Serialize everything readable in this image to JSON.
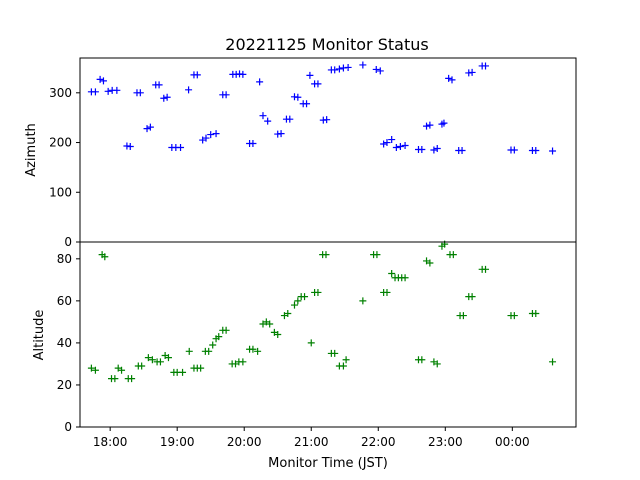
{
  "chart_data": {
    "type": "scatter",
    "title": "20221125 Monitor Status",
    "xlabel": "Monitor Time (JST)",
    "x_ticks": [
      "18:00",
      "19:00",
      "20:00",
      "21:00",
      "22:00",
      "23:00",
      "00:00"
    ],
    "x_tick_hours": [
      18,
      19,
      20,
      21,
      22,
      23,
      24
    ],
    "xlim_hours": [
      17.55,
      24.95
    ],
    "marker": "+",
    "panels": [
      {
        "name": "azimuth",
        "ylabel": "Azimuth",
        "color": "#0000ff",
        "ylim": [
          0,
          370
        ],
        "y_ticks": [
          0,
          100,
          200,
          300
        ],
        "points": [
          [
            17.72,
            302
          ],
          [
            17.78,
            302
          ],
          [
            17.85,
            327
          ],
          [
            17.9,
            324
          ],
          [
            17.97,
            303
          ],
          [
            18.03,
            305
          ],
          [
            18.1,
            305
          ],
          [
            18.25,
            193
          ],
          [
            18.3,
            192
          ],
          [
            18.4,
            300
          ],
          [
            18.45,
            300
          ],
          [
            18.55,
            228
          ],
          [
            18.6,
            231
          ],
          [
            18.68,
            316
          ],
          [
            18.73,
            316
          ],
          [
            18.8,
            289
          ],
          [
            18.85,
            291
          ],
          [
            18.92,
            190
          ],
          [
            18.98,
            190
          ],
          [
            19.05,
            190
          ],
          [
            19.17,
            306
          ],
          [
            19.25,
            336
          ],
          [
            19.3,
            336
          ],
          [
            19.38,
            205
          ],
          [
            19.43,
            209
          ],
          [
            19.5,
            216
          ],
          [
            19.58,
            218
          ],
          [
            19.68,
            296
          ],
          [
            19.73,
            296
          ],
          [
            19.83,
            337
          ],
          [
            19.88,
            337
          ],
          [
            19.93,
            338
          ],
          [
            19.98,
            337
          ],
          [
            20.08,
            198
          ],
          [
            20.13,
            198
          ],
          [
            20.23,
            322
          ],
          [
            20.28,
            254
          ],
          [
            20.35,
            243
          ],
          [
            20.5,
            217
          ],
          [
            20.55,
            218
          ],
          [
            20.63,
            247
          ],
          [
            20.68,
            247
          ],
          [
            20.75,
            292
          ],
          [
            20.8,
            291
          ],
          [
            20.88,
            278
          ],
          [
            20.93,
            278
          ],
          [
            20.98,
            335
          ],
          [
            21.05,
            318
          ],
          [
            21.1,
            318
          ],
          [
            21.18,
            245
          ],
          [
            21.23,
            246
          ],
          [
            21.3,
            346
          ],
          [
            21.35,
            346
          ],
          [
            21.42,
            348
          ],
          [
            21.48,
            350
          ],
          [
            21.55,
            351
          ],
          [
            21.77,
            356
          ],
          [
            21.97,
            347
          ],
          [
            22.03,
            344
          ],
          [
            22.08,
            197
          ],
          [
            22.13,
            200
          ],
          [
            22.2,
            206
          ],
          [
            22.27,
            190
          ],
          [
            22.33,
            192
          ],
          [
            22.4,
            194
          ],
          [
            22.6,
            186
          ],
          [
            22.65,
            186
          ],
          [
            22.72,
            233
          ],
          [
            22.77,
            235
          ],
          [
            22.83,
            185
          ],
          [
            22.88,
            188
          ],
          [
            22.95,
            237
          ],
          [
            22.98,
            239
          ],
          [
            23.05,
            329
          ],
          [
            23.1,
            326
          ],
          [
            23.2,
            184
          ],
          [
            23.25,
            184
          ],
          [
            23.35,
            340
          ],
          [
            23.4,
            341
          ],
          [
            23.55,
            354
          ],
          [
            23.6,
            354
          ],
          [
            23.98,
            185
          ],
          [
            24.03,
            185
          ],
          [
            24.3,
            184
          ],
          [
            24.35,
            184
          ],
          [
            24.6,
            183
          ]
        ]
      },
      {
        "name": "altitude",
        "ylabel": "Altitude",
        "color": "#008000",
        "ylim": [
          0,
          88
        ],
        "y_ticks": [
          0,
          20,
          40,
          60,
          80
        ],
        "points": [
          [
            17.72,
            28
          ],
          [
            17.78,
            27
          ],
          [
            17.88,
            82
          ],
          [
            17.92,
            81
          ],
          [
            18.02,
            23
          ],
          [
            18.07,
            23
          ],
          [
            18.12,
            28
          ],
          [
            18.17,
            27
          ],
          [
            18.27,
            23
          ],
          [
            18.32,
            23
          ],
          [
            18.42,
            29
          ],
          [
            18.47,
            29
          ],
          [
            18.57,
            33
          ],
          [
            18.63,
            32
          ],
          [
            18.7,
            31
          ],
          [
            18.75,
            31
          ],
          [
            18.82,
            34
          ],
          [
            18.87,
            33
          ],
          [
            18.95,
            26
          ],
          [
            19.0,
            26
          ],
          [
            19.08,
            26
          ],
          [
            19.18,
            36
          ],
          [
            19.25,
            28
          ],
          [
            19.3,
            28
          ],
          [
            19.35,
            28
          ],
          [
            19.42,
            36
          ],
          [
            19.47,
            36
          ],
          [
            19.53,
            39
          ],
          [
            19.58,
            42
          ],
          [
            19.62,
            43
          ],
          [
            19.68,
            46
          ],
          [
            19.73,
            46
          ],
          [
            19.82,
            30
          ],
          [
            19.87,
            30
          ],
          [
            19.92,
            31
          ],
          [
            19.98,
            31
          ],
          [
            20.08,
            37
          ],
          [
            20.13,
            37
          ],
          [
            20.2,
            36
          ],
          [
            20.28,
            49
          ],
          [
            20.33,
            50
          ],
          [
            20.38,
            49
          ],
          [
            20.45,
            45
          ],
          [
            20.5,
            44
          ],
          [
            20.6,
            53
          ],
          [
            20.65,
            54
          ],
          [
            20.75,
            58
          ],
          [
            20.8,
            60
          ],
          [
            20.85,
            62
          ],
          [
            20.9,
            62
          ],
          [
            21.0,
            40
          ],
          [
            21.05,
            64
          ],
          [
            21.1,
            64
          ],
          [
            21.17,
            82
          ],
          [
            21.22,
            82
          ],
          [
            21.3,
            35
          ],
          [
            21.35,
            35
          ],
          [
            21.42,
            29
          ],
          [
            21.48,
            29
          ],
          [
            21.52,
            32
          ],
          [
            21.77,
            60
          ],
          [
            21.93,
            82
          ],
          [
            21.98,
            82
          ],
          [
            22.08,
            64
          ],
          [
            22.13,
            64
          ],
          [
            22.2,
            73
          ],
          [
            22.25,
            71
          ],
          [
            22.3,
            71
          ],
          [
            22.35,
            71
          ],
          [
            22.4,
            71
          ],
          [
            22.6,
            32
          ],
          [
            22.65,
            32
          ],
          [
            22.72,
            79
          ],
          [
            22.77,
            78
          ],
          [
            22.83,
            31
          ],
          [
            22.88,
            30
          ],
          [
            22.95,
            86
          ],
          [
            22.99,
            87
          ],
          [
            23.07,
            82
          ],
          [
            23.12,
            82
          ],
          [
            23.22,
            53
          ],
          [
            23.27,
            53
          ],
          [
            23.35,
            62
          ],
          [
            23.4,
            62
          ],
          [
            23.55,
            75
          ],
          [
            23.6,
            75
          ],
          [
            23.98,
            53
          ],
          [
            24.03,
            53
          ],
          [
            24.3,
            54
          ],
          [
            24.35,
            54
          ],
          [
            24.6,
            31
          ]
        ]
      }
    ]
  }
}
